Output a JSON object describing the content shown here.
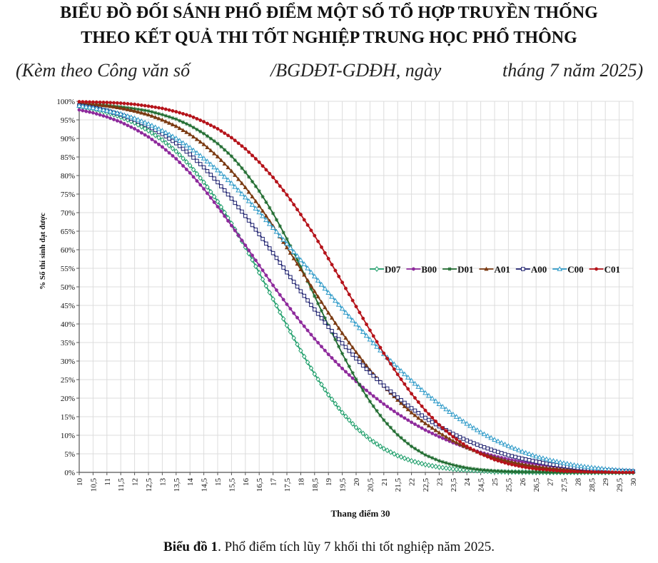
{
  "header": {
    "title_line1": "BIỂU ĐỒ ĐỐI SÁNH PHỔ ĐIỂM MỘT SỐ TỔ HỢP TRUYỀN THỐNG",
    "title_line2": "THEO KẾT QUẢ THI TỐT NGHIỆP TRUNG HỌC PHỔ THÔNG",
    "subtitle_part1": "(Kèm theo Công văn số",
    "subtitle_part2": "/BGDĐT-GDĐH, ngày",
    "subtitle_part3": "tháng 7 năm 2025)"
  },
  "caption": {
    "bold": "Biểu đồ 1",
    "rest": ". Phổ điểm tích lũy 7 khối thi tốt nghiệp năm 2025."
  },
  "chart_data": {
    "type": "line",
    "title": "",
    "xlabel": "Thang điểm 30",
    "ylabel": "% Số thí sinh đạt được",
    "xlim": [
      10,
      30
    ],
    "ylim": [
      0,
      100
    ],
    "x_tick_labels": [
      "10",
      "10,5",
      "11",
      "11,5",
      "12",
      "12,5",
      "13",
      "13,5",
      "14",
      "14,5",
      "15",
      "15,5",
      "16",
      "16,5",
      "17",
      "17,5",
      "18",
      "18,5",
      "19",
      "19,5",
      "20",
      "20,5",
      "21",
      "21,5",
      "22",
      "22,5",
      "23",
      "23,5",
      "24",
      "24,5",
      "25",
      "25,5",
      "26",
      "26,5",
      "27",
      "27,5",
      "28",
      "28,5",
      "29",
      "29,5",
      "30"
    ],
    "y_tick_labels": [
      "0%",
      "5%",
      "10%",
      "15%",
      "20%",
      "25%",
      "30%",
      "35%",
      "40%",
      "45%",
      "50%",
      "55%",
      "60%",
      "65%",
      "70%",
      "75%",
      "80%",
      "85%",
      "90%",
      "95%",
      "100%"
    ],
    "grid": true,
    "legend_position": "center-right",
    "x": [
      10,
      10.5,
      11,
      11.5,
      12,
      12.5,
      13,
      13.5,
      14,
      14.5,
      15,
      15.5,
      16,
      16.5,
      17,
      17.5,
      18,
      18.5,
      19,
      19.5,
      20,
      20.5,
      21,
      21.5,
      22,
      22.5,
      23,
      23.5,
      24,
      24.5,
      25,
      25.5,
      26,
      26.5,
      27,
      27.5,
      28,
      28.5,
      29,
      29.5,
      30
    ],
    "series": [
      {
        "name": "D07",
        "color": "#1e9e6a",
        "marker": "diamond-open",
        "values": [
          98.6,
          97.9,
          97,
          95.8,
          94.2,
          92.1,
          89.6,
          86.5,
          82.7,
          78.2,
          73,
          67.1,
          60.7,
          53.8,
          46.7,
          39.6,
          32.8,
          26.5,
          20.9,
          16.1,
          12.1,
          8.9,
          6.4,
          4.5,
          3.1,
          2.1,
          1.4,
          0.9,
          0.6,
          0.4,
          0.2,
          0.1,
          0.1,
          0,
          0,
          0,
          0,
          0,
          0,
          0,
          0
        ]
      },
      {
        "name": "B00",
        "color": "#8e2a9c",
        "marker": "dot",
        "values": [
          97.7,
          96.9,
          95.8,
          94.4,
          92.6,
          90.4,
          87.7,
          84.5,
          80.7,
          76.4,
          71.6,
          66.5,
          61.2,
          55.8,
          50.4,
          45.3,
          40.5,
          36,
          31.8,
          28,
          24.5,
          21.3,
          18.4,
          15.8,
          13.5,
          11.4,
          9.6,
          8,
          6.6,
          5.4,
          4.4,
          3.5,
          2.8,
          2.2,
          1.7,
          1.3,
          1,
          0.7,
          0.5,
          0.4,
          0.3
        ]
      },
      {
        "name": "D01",
        "color": "#1f6b2f",
        "marker": "star",
        "values": [
          99.4,
          99.2,
          98.9,
          98.5,
          98,
          97.4,
          96.4,
          95.2,
          93.5,
          91.3,
          88.6,
          85.2,
          80.9,
          75.8,
          69.8,
          62.9,
          55.4,
          47.5,
          39.6,
          32,
          25.1,
          19.1,
          14.1,
          10.1,
          7,
          4.7,
          3.1,
          2,
          1.2,
          0.7,
          0.4,
          0.2,
          0.1,
          0.1,
          0,
          0,
          0,
          0,
          0,
          0,
          0
        ]
      },
      {
        "name": "A01",
        "color": "#7b3a12",
        "marker": "triangle",
        "values": [
          99.5,
          99.2,
          98.8,
          98.2,
          97.4,
          96.4,
          95,
          93.3,
          91.1,
          88.4,
          85.1,
          81.2,
          76.8,
          71.8,
          66.4,
          60.6,
          54.7,
          48.8,
          43,
          37.5,
          32.4,
          27.6,
          23.3,
          19.5,
          16.1,
          13.2,
          10.7,
          8.5,
          6.7,
          5.2,
          4,
          3,
          2.2,
          1.6,
          1.1,
          0.8,
          0.5,
          0.3,
          0.2,
          0.1,
          0.1
        ]
      },
      {
        "name": "A00",
        "color": "#1c1f6e",
        "marker": "square-open",
        "values": [
          98.9,
          98.3,
          97.5,
          96.4,
          95,
          93.3,
          91.2,
          88.7,
          85.7,
          82.2,
          78.2,
          73.8,
          69.1,
          64.2,
          59.1,
          53.9,
          48.8,
          43.9,
          39.2,
          34.8,
          30.7,
          26.9,
          23.4,
          20.2,
          17.3,
          14.7,
          12.4,
          10.4,
          8.6,
          7.1,
          5.8,
          4.6,
          3.7,
          2.9,
          2.2,
          1.7,
          1.2,
          0.9,
          0.6,
          0.4,
          0.3
        ]
      },
      {
        "name": "C00",
        "color": "#2e9ac8",
        "marker": "triangle-open",
        "values": [
          98.8,
          98.2,
          97.5,
          96.6,
          95.4,
          93.9,
          92.1,
          90,
          87.5,
          84.6,
          81.4,
          77.9,
          74.1,
          70.1,
          65.9,
          61.6,
          57.2,
          52.8,
          48.4,
          44.1,
          39.9,
          35.8,
          31.9,
          28.2,
          24.7,
          21.4,
          18.4,
          15.6,
          13.1,
          10.8,
          8.8,
          7.1,
          5.6,
          4.3,
          3.3,
          2.5,
          1.8,
          1.3,
          0.9,
          0.6,
          0.4
        ]
      },
      {
        "name": "C01",
        "color": "#b5131a",
        "marker": "dot",
        "values": [
          99.9,
          99.8,
          99.7,
          99.5,
          99.2,
          98.7,
          98.1,
          97.2,
          96.1,
          94.5,
          92.6,
          90.2,
          87.2,
          83.6,
          79.5,
          74.8,
          69.5,
          63.8,
          57.6,
          51.2,
          44.7,
          38.3,
          32.1,
          26.4,
          21.2,
          16.7,
          12.8,
          9.6,
          7,
          5,
          3.4,
          2.3,
          1.5,
          0.9,
          0.6,
          0.3,
          0.2,
          0.1,
          0.1,
          0,
          0
        ]
      }
    ]
  }
}
